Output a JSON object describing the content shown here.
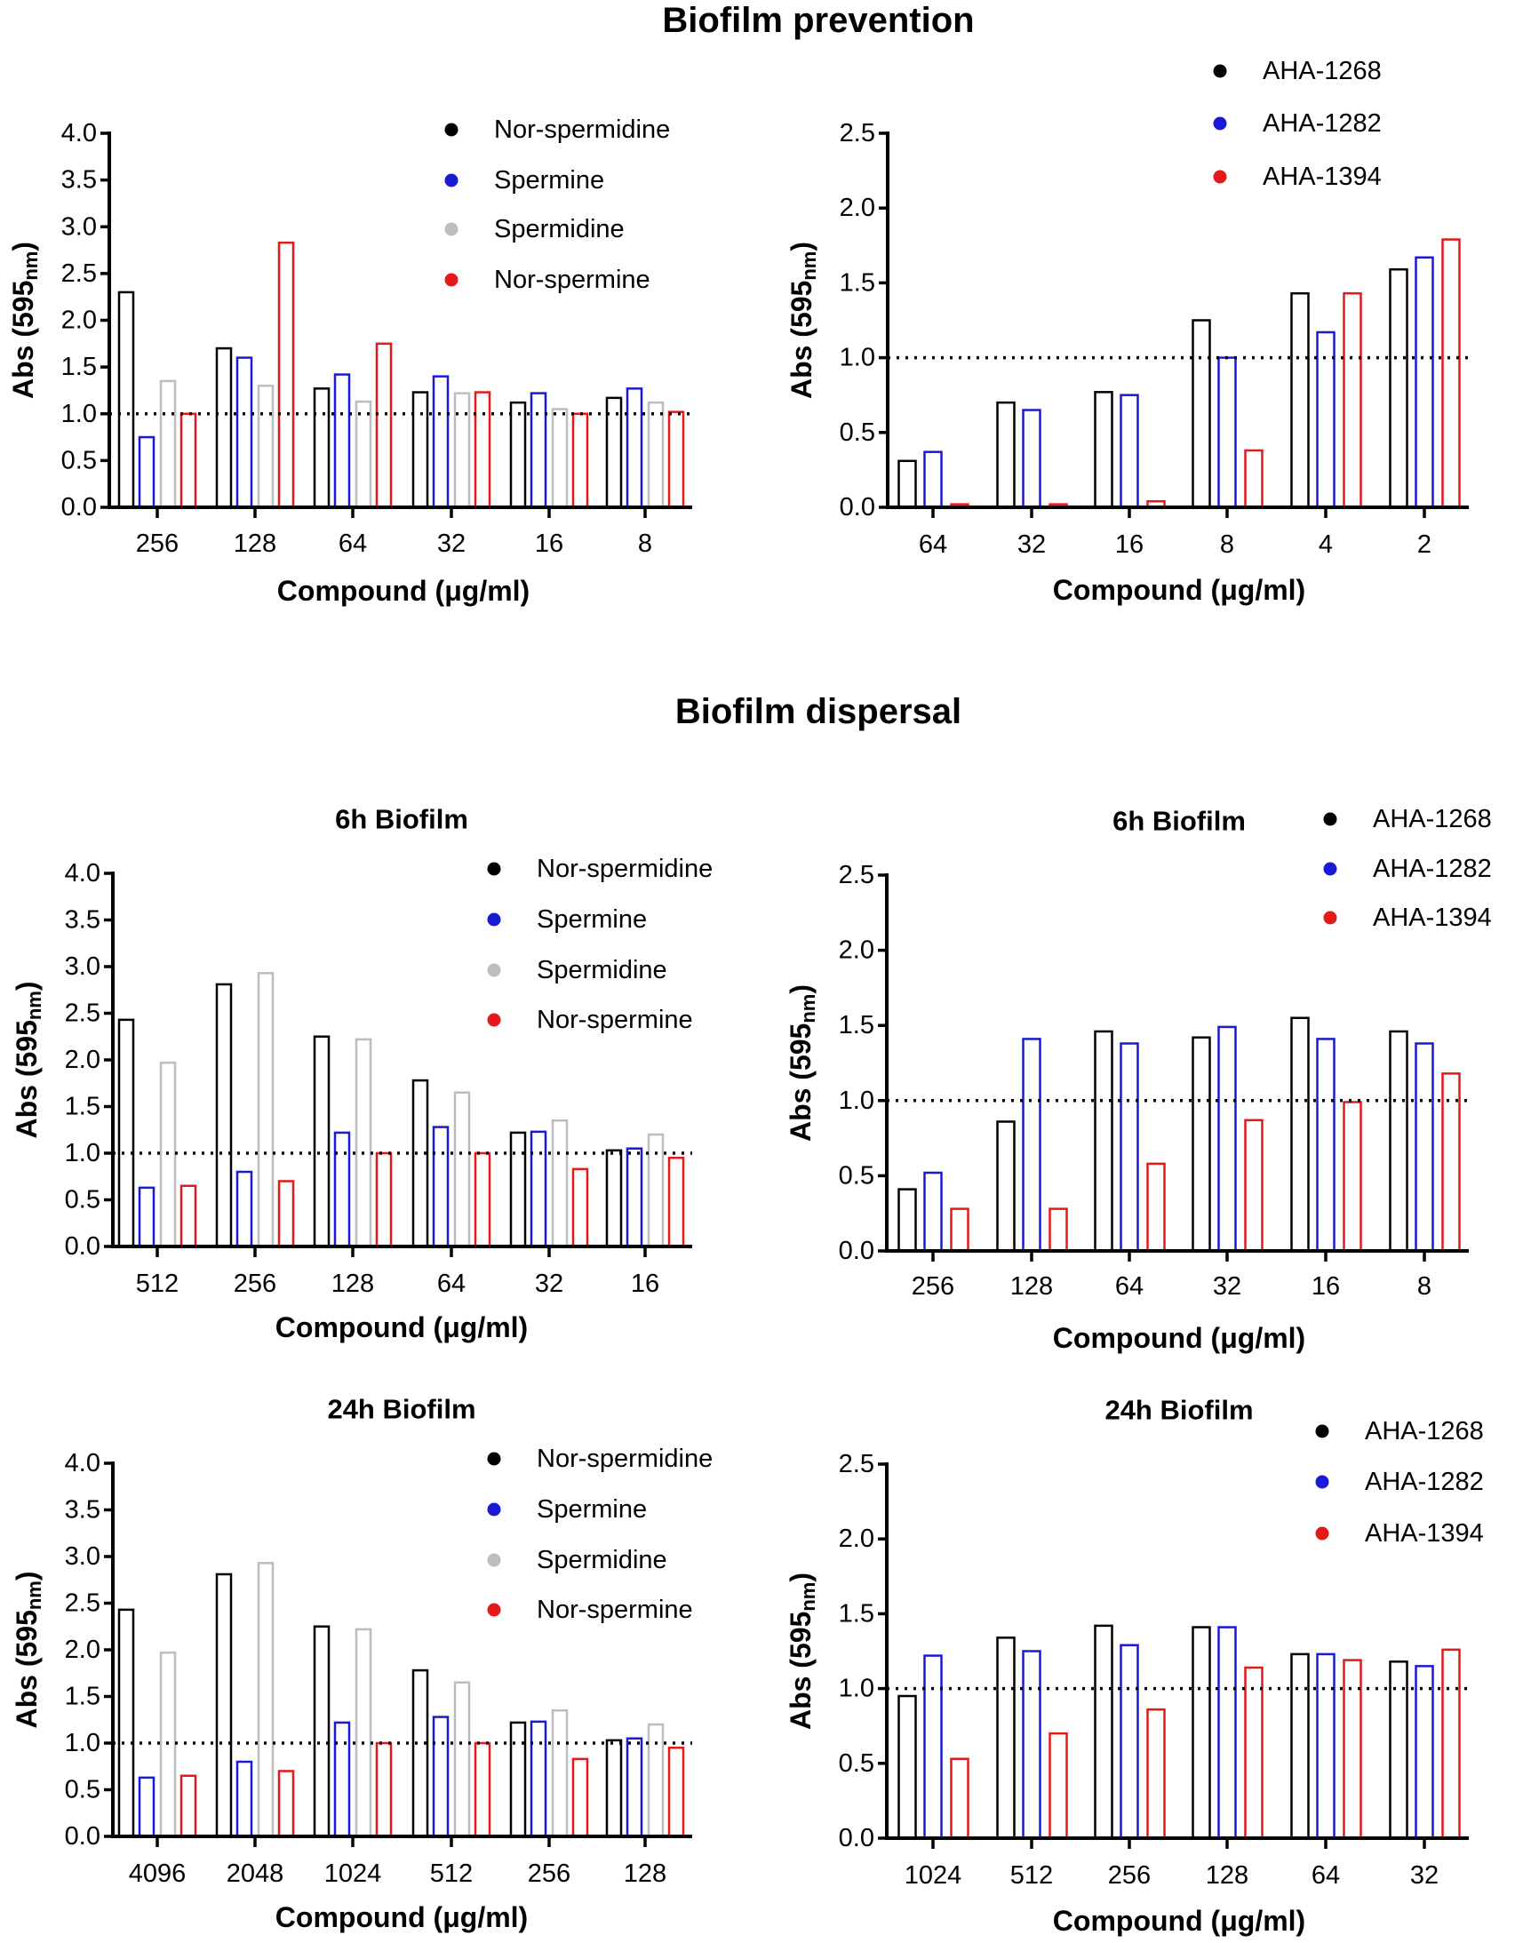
{
  "sections": {
    "prevention_title": "Biofilm prevention",
    "dispersal_title": "Biofilm dispersal"
  },
  "chart_data": [
    {
      "type": "bar",
      "panel": "Biofilm prevention",
      "title": "",
      "xlabel": "Compound (μg/ml)",
      "ylabel": {
        "main": "Abs (595",
        "sub": "nm",
        "close": ")"
      },
      "ylim": [
        0,
        4.0
      ],
      "yticks": [
        "0.0",
        "0.5",
        "1.0",
        "1.5",
        "2.0",
        "2.5",
        "3.0",
        "3.5",
        "4.0"
      ],
      "reference_line": 1.0,
      "legend_position": "top-right",
      "categories": [
        "256",
        "128",
        "64",
        "32",
        "16",
        "8"
      ],
      "series": [
        {
          "name": "Nor-spermidine",
          "color": "#000000",
          "values": [
            2.3,
            1.7,
            1.27,
            1.23,
            1.12,
            1.17
          ]
        },
        {
          "name": "Spermine",
          "color": "#1a1ad6",
          "values": [
            0.75,
            1.6,
            1.42,
            1.4,
            1.22,
            1.27
          ]
        },
        {
          "name": "Spermidine",
          "color": "#bdbdbd",
          "values": [
            1.35,
            1.3,
            1.13,
            1.22,
            1.05,
            1.12
          ]
        },
        {
          "name": "Nor-spermine",
          "color": "#e41a1a",
          "values": [
            1.0,
            2.83,
            1.75,
            1.23,
            1.0,
            1.02
          ]
        }
      ]
    },
    {
      "type": "bar",
      "panel": "Biofilm prevention",
      "title": "",
      "xlabel": "Compound (μg/ml)",
      "ylabel": {
        "main": "Abs (595",
        "sub": "nm",
        "close": ")"
      },
      "ylim": [
        0,
        2.5
      ],
      "yticks": [
        "0.0",
        "0.5",
        "1.0",
        "1.5",
        "2.0",
        "2.5"
      ],
      "reference_line": 1.0,
      "legend_position": "top-right",
      "categories": [
        "64",
        "32",
        "16",
        "8",
        "4",
        "2"
      ],
      "series": [
        {
          "name": "AHA-1268",
          "color": "#000000",
          "values": [
            0.31,
            0.7,
            0.77,
            1.25,
            1.43,
            1.59
          ]
        },
        {
          "name": "AHA-1282",
          "color": "#1a1ad6",
          "values": [
            0.37,
            0.65,
            0.75,
            1.0,
            1.17,
            1.67
          ]
        },
        {
          "name": "AHA-1394",
          "color": "#e41a1a",
          "values": [
            0.02,
            0.02,
            0.04,
            0.38,
            1.43,
            1.79
          ]
        }
      ]
    },
    {
      "type": "bar",
      "panel": "Biofilm dispersal",
      "title": "6h Biofilm",
      "xlabel": "Compound (μg/ml)",
      "ylabel": {
        "main": "Abs (595",
        "sub": "nm",
        "close": ")"
      },
      "ylim": [
        0,
        4.0
      ],
      "yticks": [
        "0.0",
        "0.5",
        "1.0",
        "1.5",
        "2.0",
        "2.5",
        "3.0",
        "3.5",
        "4.0"
      ],
      "reference_line": 1.0,
      "legend_position": "top-right",
      "categories": [
        "512",
        "256",
        "128",
        "64",
        "32",
        "16"
      ],
      "series": [
        {
          "name": "Nor-spermidine",
          "color": "#000000",
          "values": [
            2.43,
            2.81,
            2.25,
            1.78,
            1.22,
            1.03
          ]
        },
        {
          "name": "Spermine",
          "color": "#1a1ad6",
          "values": [
            0.63,
            0.8,
            1.22,
            1.28,
            1.23,
            1.05
          ]
        },
        {
          "name": "Spermidine",
          "color": "#bdbdbd",
          "values": [
            1.97,
            2.93,
            2.22,
            1.65,
            1.35,
            1.2
          ]
        },
        {
          "name": "Nor-spermine",
          "color": "#e41a1a",
          "values": [
            0.65,
            0.7,
            1.0,
            1.0,
            0.83,
            0.95
          ]
        }
      ]
    },
    {
      "type": "bar",
      "panel": "Biofilm dispersal",
      "title": "6h Biofilm",
      "xlabel": "Compound (μg/ml)",
      "ylabel": {
        "main": "Abs (595",
        "sub": "nm",
        "close": ")"
      },
      "ylim": [
        0,
        2.5
      ],
      "yticks": [
        "0.0",
        "0.5",
        "1.0",
        "1.5",
        "2.0",
        "2.5"
      ],
      "reference_line": 1.0,
      "legend_position": "top-right",
      "categories": [
        "256",
        "128",
        "64",
        "32",
        "16",
        "8"
      ],
      "series": [
        {
          "name": "AHA-1268",
          "color": "#000000",
          "values": [
            0.41,
            0.86,
            1.46,
            1.42,
            1.55,
            1.46
          ]
        },
        {
          "name": "AHA-1282",
          "color": "#1a1ad6",
          "values": [
            0.52,
            1.41,
            1.38,
            1.49,
            1.41,
            1.38
          ]
        },
        {
          "name": "AHA-1394",
          "color": "#e41a1a",
          "values": [
            0.28,
            0.28,
            0.58,
            0.87,
            0.99,
            1.18
          ]
        }
      ]
    },
    {
      "type": "bar",
      "panel": "Biofilm dispersal",
      "title": "24h Biofilm",
      "xlabel": "Compound (μg/ml)",
      "ylabel": {
        "main": "Abs (595",
        "sub": "nm",
        "close": ")"
      },
      "ylim": [
        0,
        4.0
      ],
      "yticks": [
        "0.0",
        "0.5",
        "1.0",
        "1.5",
        "2.0",
        "2.5",
        "3.0",
        "3.5",
        "4.0"
      ],
      "reference_line": 1.0,
      "legend_position": "top-right",
      "categories": [
        "4096",
        "2048",
        "1024",
        "512",
        "256",
        "128"
      ],
      "series": [
        {
          "name": "Nor-spermidine",
          "color": "#000000",
          "values": [
            2.43,
            2.81,
            2.25,
            1.78,
            1.22,
            1.03
          ]
        },
        {
          "name": "Spermine",
          "color": "#1a1ad6",
          "values": [
            0.63,
            0.8,
            1.22,
            1.28,
            1.23,
            1.05
          ]
        },
        {
          "name": "Spermidine",
          "color": "#bdbdbd",
          "values": [
            1.97,
            2.93,
            2.22,
            1.65,
            1.35,
            1.2
          ]
        },
        {
          "name": "Nor-spermine",
          "color": "#e41a1a",
          "values": [
            0.65,
            0.7,
            1.0,
            1.0,
            0.83,
            0.95
          ]
        }
      ]
    },
    {
      "type": "bar",
      "panel": "Biofilm dispersal",
      "title": "24h Biofilm",
      "xlabel": "Compound (μg/ml)",
      "ylabel": {
        "main": "Abs (595",
        "sub": "nm",
        "close": ")"
      },
      "ylim": [
        0,
        2.5
      ],
      "yticks": [
        "0.0",
        "0.5",
        "1.0",
        "1.5",
        "2.0",
        "2.5"
      ],
      "reference_line": 1.0,
      "legend_position": "top-right",
      "categories": [
        "1024",
        "512",
        "256",
        "128",
        "64",
        "32"
      ],
      "series": [
        {
          "name": "AHA-1268",
          "color": "#000000",
          "values": [
            0.95,
            1.34,
            1.42,
            1.41,
            1.23,
            1.18
          ]
        },
        {
          "name": "AHA-1282",
          "color": "#1a1ad6",
          "values": [
            1.22,
            1.25,
            1.29,
            1.41,
            1.23,
            1.15
          ]
        },
        {
          "name": "AHA-1394",
          "color": "#e41a1a",
          "values": [
            0.53,
            0.7,
            0.86,
            1.14,
            1.19,
            1.26
          ]
        }
      ]
    }
  ]
}
